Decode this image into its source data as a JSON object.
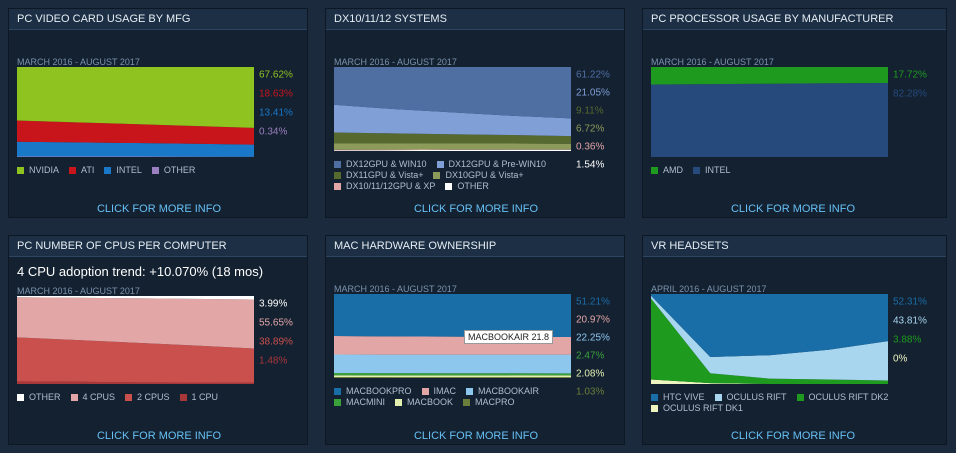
{
  "chart_data": [
    {
      "type": "area",
      "title": "PC VIDEO CARD USAGE BY MFG",
      "subtitle": "MARCH 2016 - AUGUST 2017",
      "link": "CLICK FOR MORE INFO",
      "categories": [
        null,
        null,
        null,
        null,
        null
      ],
      "ylim": [
        0,
        100
      ],
      "series": [
        {
          "name": "NVIDIA",
          "color": "#8fc31f",
          "values": [
            59.5,
            61.5,
            63.5,
            65.5,
            67.62
          ],
          "value_labels": [
            null,
            null,
            null,
            null,
            "67.62%"
          ]
        },
        {
          "name": "ATI",
          "color": "#c8151b",
          "values": [
            23.5,
            22.3,
            21,
            19.8,
            18.63
          ],
          "value_labels": [
            null,
            null,
            null,
            null,
            "18.63%"
          ]
        },
        {
          "name": "INTEL",
          "color": "#1a78c8",
          "values": [
            16.5,
            15.7,
            15,
            14.3,
            13.41
          ],
          "value_labels": [
            null,
            null,
            null,
            null,
            "13.41%"
          ]
        },
        {
          "name": "OTHER",
          "color": "#9b7fc0",
          "values": [
            0.5,
            0.5,
            0.5,
            0.4,
            0.34
          ],
          "value_labels": [
            null,
            null,
            null,
            null,
            "0.34%"
          ]
        }
      ]
    },
    {
      "type": "area",
      "title": "DX10/11/12 SYSTEMS",
      "subtitle": "MARCH 2016 - AUGUST 2017",
      "link": "CLICK FOR MORE INFO",
      "categories": [
        null,
        null,
        null,
        null,
        null
      ],
      "ylim": [
        0,
        100
      ],
      "series": [
        {
          "name": "DX12GPU & WIN10",
          "color": "#4f6fa3",
          "values": [
            45,
            50,
            54,
            58,
            61.22
          ],
          "value_labels": [
            null,
            null,
            null,
            null,
            "61.22%"
          ]
        },
        {
          "name": "DX12GPU & Pre-WIN10",
          "color": "#7f9fd6",
          "values": [
            33,
            29,
            26,
            23,
            21.05
          ],
          "value_labels": [
            null,
            null,
            null,
            null,
            "21.05%"
          ]
        },
        {
          "name": "DX11GPU & Vista+",
          "color": "#56692e",
          "values": [
            13,
            12,
            11,
            10,
            9.11
          ],
          "value_labels": [
            null,
            null,
            null,
            null,
            "9.11%"
          ]
        },
        {
          "name": "DX10GPU & Vista+",
          "color": "#8c9a5a",
          "values": [
            7.5,
            7.3,
            7,
            7,
            6.72
          ],
          "value_labels": [
            null,
            null,
            null,
            null,
            "6.72%"
          ]
        },
        {
          "name": "DX10/11/12GPU & XP",
          "color": "#e2a6a6",
          "values": [
            0.8,
            0.7,
            0.6,
            0.5,
            0.36
          ],
          "value_labels": [
            null,
            null,
            null,
            null,
            "0.36%"
          ]
        },
        {
          "name": "OTHER",
          "color": "#ffffff",
          "values": [
            0.7,
            1,
            1.4,
            1.5,
            1.54
          ],
          "value_labels": [
            null,
            null,
            null,
            null,
            "1.54%"
          ]
        }
      ]
    },
    {
      "type": "area",
      "title": "PC PROCESSOR USAGE BY MANUFACTURER",
      "subtitle": "MARCH 2016 - AUGUST 2017",
      "link": "CLICK FOR MORE INFO",
      "categories": [
        null,
        null,
        null,
        null,
        null
      ],
      "ylim": [
        0,
        100
      ],
      "series": [
        {
          "name": "AMD",
          "color": "#1e9a1e",
          "values": [
            19.5,
            19,
            18.6,
            18.1,
            17.72
          ],
          "value_labels": [
            null,
            null,
            null,
            null,
            "17.72%"
          ]
        },
        {
          "name": "INTEL",
          "color": "#264a7c",
          "values": [
            80.5,
            81,
            81.4,
            81.9,
            82.28
          ],
          "value_labels": [
            null,
            null,
            null,
            null,
            "82.28%"
          ]
        }
      ]
    },
    {
      "type": "area",
      "title": "PC NUMBER OF CPUS PER COMPUTER",
      "annotation": "4 CPU adoption trend: +10.070% (18 mos)",
      "subtitle": "MARCH 2016 - AUGUST 2017",
      "link": "CLICK FOR MORE INFO",
      "categories": [
        null,
        null,
        null,
        null,
        null
      ],
      "ylim": [
        0,
        100
      ],
      "series": [
        {
          "name": "OTHER",
          "color": "#ffffff",
          "values": [
            1.4,
            2,
            2.6,
            3.3,
            3.99
          ],
          "value_labels": [
            null,
            null,
            null,
            null,
            "3.99%"
          ]
        },
        {
          "name": "4 CPUS",
          "color": "#e2a6a6",
          "values": [
            45.6,
            48,
            50.5,
            53,
            55.65
          ],
          "value_labels": [
            null,
            null,
            null,
            null,
            "55.65%"
          ]
        },
        {
          "name": "2 CPUS",
          "color": "#c9504d",
          "values": [
            50,
            47.5,
            45,
            42,
            38.89
          ],
          "value_labels": [
            null,
            null,
            null,
            null,
            "38.89%"
          ]
        },
        {
          "name": "1 CPU",
          "color": "#a8373a",
          "values": [
            3,
            2.5,
            1.9,
            1.7,
            1.48
          ],
          "value_labels": [
            null,
            null,
            null,
            null,
            "1.48%"
          ]
        }
      ]
    },
    {
      "type": "area",
      "title": "MAC HARDWARE OWNERSHIP",
      "subtitle": "MARCH 2016 - AUGUST 2017",
      "link": "CLICK FOR MORE INFO",
      "tooltip": "MACBOOKAIR 21.8",
      "categories": [
        null,
        null,
        null,
        null,
        null
      ],
      "ylim": [
        0,
        100
      ],
      "series": [
        {
          "name": "MACBOOKPRO",
          "color": "#1a6ea8",
          "values": [
            50,
            50.5,
            50.8,
            51,
            51.21
          ],
          "value_labels": [
            null,
            null,
            null,
            null,
            "51.21%"
          ]
        },
        {
          "name": "IMAC",
          "color": "#e2a6a6",
          "values": [
            22,
            21.7,
            21.4,
            21.2,
            20.97
          ],
          "value_labels": [
            null,
            null,
            null,
            null,
            "20.97%"
          ]
        },
        {
          "name": "MACBOOKAIR",
          "color": "#8ec7ee",
          "values": [
            22,
            22,
            22.1,
            22.1,
            22.25
          ],
          "value_labels": [
            null,
            null,
            null,
            null,
            "22.25%"
          ]
        },
        {
          "name": "MACMINI",
          "color": "#3aa13a",
          "values": [
            2.8,
            2.7,
            2.6,
            2.5,
            2.47
          ],
          "value_labels": [
            null,
            null,
            null,
            null,
            "2.47%"
          ]
        },
        {
          "name": "MACBOOK",
          "color": "#e4f0b0",
          "values": [
            2,
            2,
            2,
            2.1,
            2.08
          ],
          "value_labels": [
            null,
            null,
            null,
            null,
            "2.08%"
          ]
        },
        {
          "name": "MACPRO",
          "color": "#6b7f3a",
          "values": [
            1.2,
            1.1,
            1.1,
            1.1,
            1.03
          ],
          "value_labels": [
            null,
            null,
            null,
            null,
            "1.03%"
          ]
        }
      ]
    },
    {
      "type": "area",
      "title": "VR HEADSETS",
      "subtitle": "APRIL 2016 - AUGUST 2017",
      "link": "CLICK FOR MORE INFO",
      "categories": [
        null,
        null,
        null,
        null,
        null
      ],
      "ylim": [
        0,
        100
      ],
      "series": [
        {
          "name": "HTC VIVE",
          "color": "#1a6ea8",
          "values": [
            2,
            70,
            68,
            62,
            52.31
          ],
          "value_labels": [
            null,
            null,
            null,
            null,
            "52.31%"
          ]
        },
        {
          "name": "OCULUS RIFT",
          "color": "#a8d6ee",
          "values": [
            3,
            18,
            26,
            33,
            43.81
          ],
          "value_labels": [
            null,
            null,
            null,
            null,
            "43.81%"
          ]
        },
        {
          "name": "OCULUS RIFT DK2",
          "color": "#1e9a1e",
          "values": [
            90,
            11,
            6,
            5,
            3.88
          ],
          "value_labels": [
            null,
            null,
            null,
            null,
            "3.88%"
          ]
        },
        {
          "name": "OCULUS RIFT DK1",
          "color": "#eef5c0",
          "values": [
            5,
            1,
            0,
            0,
            0
          ],
          "value_labels": [
            null,
            null,
            null,
            null,
            "0%"
          ]
        }
      ]
    }
  ]
}
